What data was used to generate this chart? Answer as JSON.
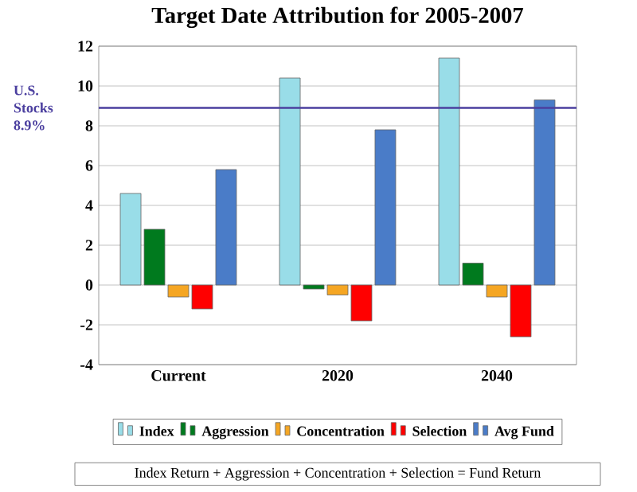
{
  "chart_data": {
    "type": "bar",
    "title": "Target Date Attribution for 2005-2007",
    "categories": [
      "Current",
      "2020",
      "2040"
    ],
    "series": [
      {
        "name": "Index",
        "color": "#99dde8",
        "values": [
          4.6,
          10.4,
          11.4
        ]
      },
      {
        "name": "Aggression",
        "color": "#007a1e",
        "values": [
          2.8,
          -0.2,
          1.1
        ]
      },
      {
        "name": "Concentration",
        "color": "#f5a623",
        "values": [
          -0.6,
          -0.5,
          -0.6
        ]
      },
      {
        "name": "Selection",
        "color": "#ff0000",
        "values": [
          -1.2,
          -1.8,
          -2.6
        ]
      },
      {
        "name": "Avg Fund",
        "color": "#4a7cc8",
        "values": [
          5.8,
          7.8,
          9.3
        ]
      }
    ],
    "ylim": [
      -4,
      12
    ],
    "yticks": [
      -4,
      -2,
      0,
      2,
      4,
      6,
      8,
      10,
      12
    ],
    "grid": "y",
    "legend": "bottom",
    "ref_lines": [
      {
        "axis": "y",
        "value": 8.9,
        "label": "U.S. Stocks 8.9%",
        "color": "#4b3f9f"
      }
    ],
    "annotations": [
      "Index Return + Aggression + Concentration + Selection = Fund Return"
    ]
  }
}
